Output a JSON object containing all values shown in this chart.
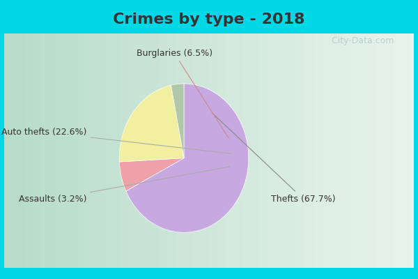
{
  "title": "Crimes by type - 2018",
  "slices": [
    {
      "label": "Thefts (67.7%)",
      "value": 67.7,
      "color": "#c8a8e0"
    },
    {
      "label": "Burglaries (6.5%)",
      "value": 6.5,
      "color": "#f0a0a8"
    },
    {
      "label": "Auto thefts (22.6%)",
      "value": 22.6,
      "color": "#f0f0a0"
    },
    {
      "label": "Assaults (3.2%)",
      "value": 3.2,
      "color": "#b0c8a8"
    }
  ],
  "bg_outer": "#00d8e8",
  "bg_inner_left": "#c8e8d0",
  "bg_inner_right": "#e8f4f0",
  "title_fontsize": 16,
  "label_fontsize": 9,
  "watermark": "  City-Data.com",
  "title_color": "#333333"
}
